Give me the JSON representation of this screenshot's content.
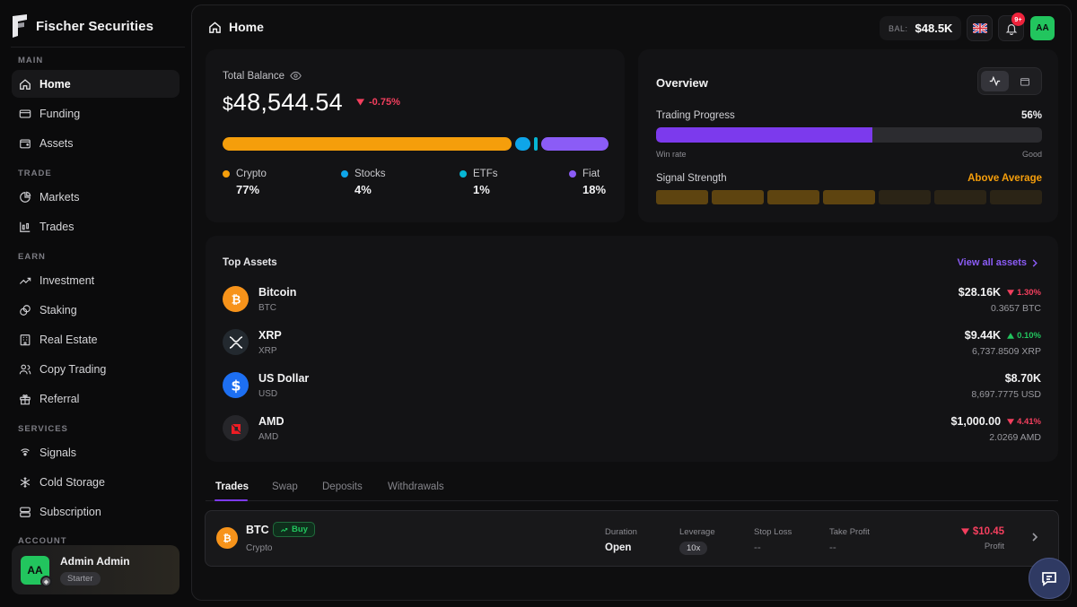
{
  "brand": {
    "name": "Fischer Securities"
  },
  "sidebar": {
    "sections": {
      "main": "MAIN",
      "trade": "TRADE",
      "earn": "EARN",
      "services": "SERVICES",
      "account": "ACCOUNT"
    },
    "items": [
      {
        "label": "Home",
        "icon": "home-icon",
        "active": true
      },
      {
        "label": "Funding",
        "icon": "card-icon"
      },
      {
        "label": "Assets",
        "icon": "wallet-icon"
      },
      {
        "label": "Markets",
        "icon": "pie-chart-icon"
      },
      {
        "label": "Trades",
        "icon": "candlestick-icon"
      },
      {
        "label": "Investment",
        "icon": "trend-up-icon"
      },
      {
        "label": "Staking",
        "icon": "coins-icon"
      },
      {
        "label": "Real Estate",
        "icon": "building-icon"
      },
      {
        "label": "Copy Trading",
        "icon": "users-icon"
      },
      {
        "label": "Referral",
        "icon": "gift-icon"
      },
      {
        "label": "Signals",
        "icon": "signal-icon"
      },
      {
        "label": "Cold Storage",
        "icon": "snowflake-icon"
      },
      {
        "label": "Subscription",
        "icon": "layers-icon"
      }
    ],
    "account": {
      "initials": "AA",
      "name": "Admin Admin",
      "plan": "Starter"
    }
  },
  "header": {
    "title": "Home",
    "balance_label": "BAL:",
    "balance_value": "$48.5K",
    "notifications": "9+",
    "user_initials": "AA"
  },
  "balance": {
    "label": "Total Balance",
    "currency": "$",
    "amount": "48,544.54",
    "change": "-0.75%",
    "allocation": [
      {
        "name": "Crypto",
        "pct": "77%",
        "value": 77,
        "color": "#f59e0b"
      },
      {
        "name": "Stocks",
        "pct": "4%",
        "value": 4,
        "color": "#0ea5e9"
      },
      {
        "name": "ETFs",
        "pct": "1%",
        "value": 1,
        "color": "#06b6d4"
      },
      {
        "name": "Fiat",
        "pct": "18%",
        "value": 18,
        "color": "#8b5cf6"
      }
    ]
  },
  "overview": {
    "title": "Overview",
    "trading_progress_label": "Trading Progress",
    "trading_progress_pct": "56%",
    "trading_progress_value": 56,
    "min_label": "Win rate",
    "max_label": "Good",
    "signal_label": "Signal Strength",
    "signal_value": "Above Average",
    "signal_levels": [
      1,
      1,
      1,
      1,
      0,
      0,
      0
    ],
    "colors": {
      "accent": "#7c3aed",
      "signal": "#f59e0b"
    }
  },
  "top_assets": {
    "title": "Top Assets",
    "view_all": "View all assets",
    "items": [
      {
        "name": "Bitcoin",
        "symbol": "BTC",
        "value": "$28.16K",
        "change": "1.30%",
        "direction": "down",
        "amount": "0.3657 BTC",
        "icon": "bitcoin-icon"
      },
      {
        "name": "XRP",
        "symbol": "XRP",
        "value": "$9.44K",
        "change": "0.10%",
        "direction": "up",
        "amount": "6,737.8509 XRP",
        "icon": "xrp-icon"
      },
      {
        "name": "US Dollar",
        "symbol": "USD",
        "value": "$8.70K",
        "change": "",
        "direction": "",
        "amount": "8,697.7775 USD",
        "icon": "dollar-icon"
      },
      {
        "name": "AMD",
        "symbol": "AMD",
        "value": "$1,000.00",
        "change": "4.41%",
        "direction": "down",
        "amount": "2.0269 AMD",
        "icon": "amd-icon"
      }
    ]
  },
  "tabs": [
    "Trades",
    "Swap",
    "Deposits",
    "Withdrawals"
  ],
  "trade": {
    "symbol": "BTC",
    "type": "Buy",
    "category": "Crypto",
    "duration_label": "Duration",
    "duration": "Open",
    "leverage_label": "Leverage",
    "leverage": "10x",
    "stop_loss_label": "Stop Loss",
    "stop_loss": "--",
    "take_profit_label": "Take Profit",
    "take_profit": "--",
    "profit": "$10.45",
    "profit_label": "Profit"
  }
}
